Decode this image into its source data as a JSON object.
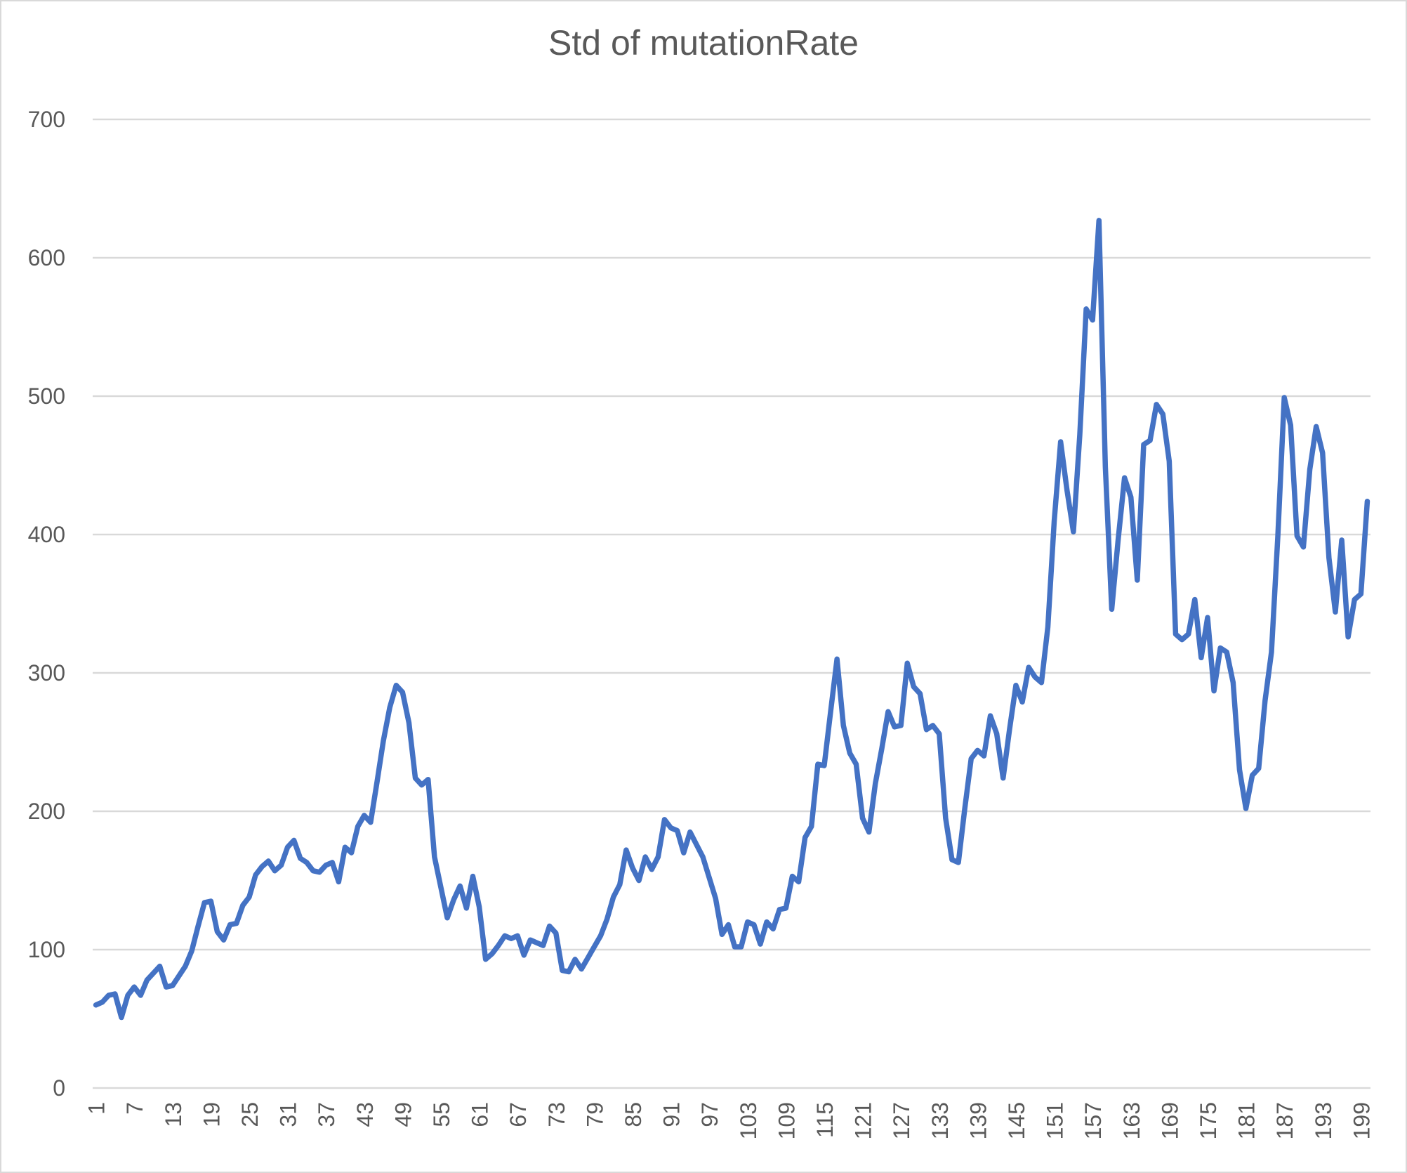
{
  "chart_data": {
    "type": "line",
    "title": "Std of mutationRate",
    "xlabel": "",
    "ylabel": "",
    "ylim": [
      0,
      700
    ],
    "yticks": [
      0,
      100,
      200,
      300,
      400,
      500,
      600,
      700
    ],
    "x": [
      1,
      2,
      3,
      4,
      5,
      6,
      7,
      8,
      9,
      10,
      11,
      12,
      13,
      14,
      15,
      16,
      17,
      18,
      19,
      20,
      21,
      22,
      23,
      24,
      25,
      26,
      27,
      28,
      29,
      30,
      31,
      32,
      33,
      34,
      35,
      36,
      37,
      38,
      39,
      40,
      41,
      42,
      43,
      44,
      45,
      46,
      47,
      48,
      49,
      50,
      51,
      52,
      53,
      54,
      55,
      56,
      57,
      58,
      59,
      60,
      61,
      62,
      63,
      64,
      65,
      66,
      67,
      68,
      69,
      70,
      71,
      72,
      73,
      74,
      75,
      76,
      77,
      78,
      79,
      80,
      81,
      82,
      83,
      84,
      85,
      86,
      87,
      88,
      89,
      90,
      91,
      92,
      93,
      94,
      95,
      96,
      97,
      98,
      99,
      100,
      101,
      102,
      103,
      104,
      105,
      106,
      107,
      108,
      109,
      110,
      111,
      112,
      113,
      114,
      115,
      116,
      117,
      118,
      119,
      120,
      121,
      122,
      123,
      124,
      125,
      126,
      127,
      128,
      129,
      130,
      131,
      132,
      133,
      134,
      135,
      136,
      137,
      138,
      139,
      140,
      141,
      142,
      143,
      144,
      145,
      146,
      147,
      148,
      149,
      150,
      151,
      152,
      153,
      154,
      155,
      156,
      157,
      158,
      159,
      160,
      161,
      162,
      163,
      164,
      165,
      166,
      167,
      168,
      169,
      170,
      171,
      172,
      173,
      174,
      175,
      176,
      177,
      178,
      179,
      180,
      181,
      182,
      183,
      184,
      185,
      186,
      187,
      188,
      189,
      190,
      191,
      192,
      193,
      194,
      195,
      196,
      197,
      198,
      199,
      200
    ],
    "xtick_labels": [
      "1",
      "7",
      "13",
      "19",
      "25",
      "31",
      "37",
      "43",
      "49",
      "55",
      "61",
      "67",
      "73",
      "79",
      "85",
      "91",
      "97",
      "103",
      "109",
      "115",
      "121",
      "127",
      "133",
      "139",
      "145",
      "151",
      "157",
      "163",
      "169",
      "175",
      "181",
      "187",
      "193",
      "199"
    ],
    "series": [
      {
        "color": "#4472c4",
        "values": [
          60,
          62,
          67,
          68,
          51,
          67,
          73,
          67,
          78,
          83,
          88,
          73,
          74,
          81,
          88,
          99,
          117,
          134,
          135,
          113,
          107,
          118,
          119,
          132,
          138,
          154,
          160,
          164,
          157,
          161,
          174,
          179,
          166,
          163,
          157,
          156,
          161,
          163,
          149,
          174,
          170,
          189,
          197,
          192,
          221,
          251,
          275,
          291,
          286,
          264,
          224,
          219,
          223,
          167,
          145,
          123,
          136,
          146,
          130,
          153,
          131,
          93,
          97,
          103,
          110,
          108,
          110,
          96,
          107,
          105,
          103,
          117,
          112,
          85,
          84,
          93,
          86,
          94,
          102,
          110,
          122,
          138,
          147,
          172,
          159,
          150,
          167,
          158,
          167,
          194,
          188,
          186,
          170,
          185,
          176,
          167,
          152,
          137,
          111,
          118,
          102,
          102,
          120,
          118,
          104,
          120,
          115,
          129,
          130,
          153,
          149,
          181,
          189,
          234,
          233,
          272,
          310,
          262,
          242,
          234,
          195,
          185,
          220,
          245,
          272,
          261,
          262,
          307,
          290,
          285,
          259,
          262,
          256,
          195,
          165,
          163,
          202,
          238,
          244,
          240,
          269,
          256,
          224,
          259,
          291,
          279,
          304,
          297,
          293,
          333,
          410,
          467,
          432,
          402,
          472,
          563,
          555,
          627,
          449,
          346,
          396,
          441,
          427,
          367,
          465,
          468,
          494,
          487,
          453,
          328,
          324,
          328,
          353,
          311,
          340,
          287,
          318,
          315,
          293,
          230,
          202,
          226,
          231,
          280,
          315,
          399,
          499,
          479,
          399,
          391,
          447,
          478,
          459,
          383,
          344,
          396,
          326,
          353,
          357,
          424
        ]
      }
    ]
  }
}
